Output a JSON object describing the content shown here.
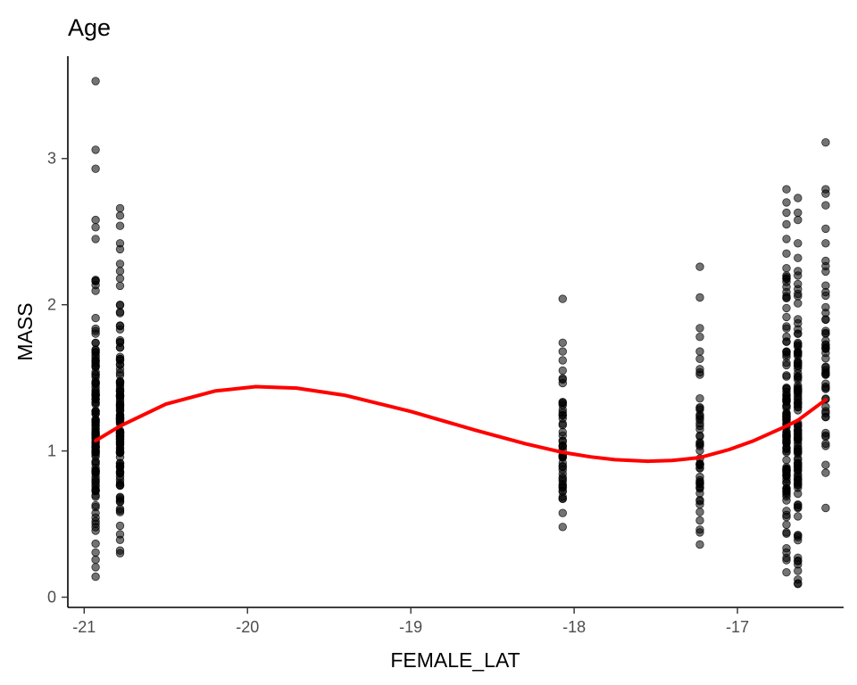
{
  "chart_data": {
    "type": "scatter",
    "title": "Age",
    "xlabel": "FEMALE_LAT",
    "ylabel": "MASS",
    "xlim": [
      -21.1,
      -16.35
    ],
    "ylim": [
      -0.07,
      3.7
    ],
    "x_ticks": [
      -21,
      -20,
      -19,
      -18,
      -17
    ],
    "x_tick_labels": [
      "-21",
      "-20",
      "-19",
      "-18",
      "-17"
    ],
    "y_ticks": [
      0,
      1,
      2,
      3
    ],
    "y_tick_labels": [
      "0",
      "1",
      "2",
      "3"
    ],
    "grid": false,
    "legend": "none",
    "point_color": "#000000",
    "smooth_color": "#ff0000",
    "clusters": [
      {
        "x": -20.93,
        "y_min": 0.14,
        "y_max": 2.17,
        "outliers": [
          2.45,
          2.53,
          2.58,
          2.93,
          3.06,
          3.53
        ],
        "dense": true
      },
      {
        "x": -20.78,
        "y_min": 0.3,
        "y_max": 2.0,
        "outliers": [
          2.13,
          2.18,
          2.23,
          2.28,
          2.38,
          2.42,
          2.54,
          2.61,
          2.66
        ],
        "dense": true
      },
      {
        "x": -18.07,
        "y_min": 0.48,
        "y_max": 1.55,
        "outliers": [
          1.62,
          1.68,
          1.74,
          2.04
        ],
        "dense": false
      },
      {
        "x": -17.23,
        "y_min": 0.36,
        "y_max": 1.56,
        "outliers": [
          1.63,
          1.68,
          1.78,
          1.84,
          2.05,
          2.26
        ],
        "dense": false
      },
      {
        "x": -16.7,
        "y_min": 0.17,
        "y_max": 2.2,
        "outliers": [
          2.25,
          2.35,
          2.45,
          2.55,
          2.63,
          2.7,
          2.79
        ],
        "dense": true
      },
      {
        "x": -16.63,
        "y_min": 0.09,
        "y_max": 2.2,
        "outliers": [
          2.23,
          2.32,
          2.42,
          2.58,
          2.63,
          2.73
        ],
        "dense": true
      },
      {
        "x": -16.46,
        "y_min": 0.61,
        "y_max": 2.3,
        "outliers": [
          2.42,
          2.52,
          2.68,
          2.76,
          2.79,
          3.11
        ],
        "dense": false
      }
    ],
    "smooth_line": {
      "x": [
        -20.93,
        -20.78,
        -20.5,
        -20.2,
        -19.95,
        -19.7,
        -19.4,
        -19.0,
        -18.6,
        -18.3,
        -18.07,
        -17.9,
        -17.75,
        -17.55,
        -17.4,
        -17.23,
        -17.05,
        -16.9,
        -16.7,
        -16.63,
        -16.46
      ],
      "y": [
        1.07,
        1.17,
        1.32,
        1.41,
        1.44,
        1.43,
        1.38,
        1.27,
        1.14,
        1.05,
        0.99,
        0.96,
        0.94,
        0.93,
        0.935,
        0.955,
        1.01,
        1.07,
        1.17,
        1.21,
        1.35
      ]
    }
  }
}
